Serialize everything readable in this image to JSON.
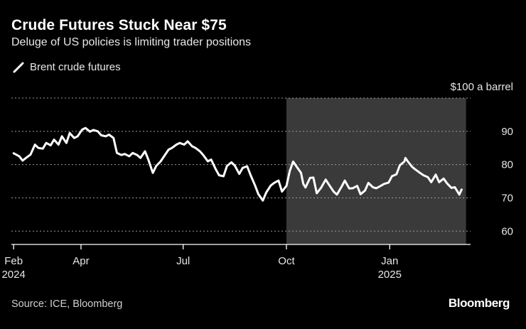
{
  "title": "Crude Futures Stuck Near $75",
  "subtitle": "Deluge of US policies is limiting trader positions",
  "source": "Source: ICE, Bloomberg",
  "brand": "Bloomberg",
  "colors": {
    "background": "#000000",
    "line": "#ffffff",
    "highlight": "#3a3a3a",
    "grid": "#9a9a9a"
  },
  "chart_data": {
    "type": "line",
    "series": [
      {
        "name": "Brent crude futures",
        "points": [
          [
            "2024-02-01",
            83.4
          ],
          [
            "2024-02-06",
            82.5
          ],
          [
            "2024-02-09",
            81.2
          ],
          [
            "2024-02-12",
            82.0
          ],
          [
            "2024-02-16",
            83.0
          ],
          [
            "2024-02-20",
            86.0
          ],
          [
            "2024-02-23",
            85.0
          ],
          [
            "2024-02-27",
            84.8
          ],
          [
            "2024-03-01",
            86.5
          ],
          [
            "2024-03-05",
            85.8
          ],
          [
            "2024-03-08",
            87.5
          ],
          [
            "2024-03-12",
            86.0
          ],
          [
            "2024-03-15",
            88.5
          ],
          [
            "2024-03-19",
            86.5
          ],
          [
            "2024-03-22",
            89.5
          ],
          [
            "2024-03-26",
            88.0
          ],
          [
            "2024-03-29",
            88.5
          ],
          [
            "2024-04-02",
            90.5
          ],
          [
            "2024-04-05",
            91.0
          ],
          [
            "2024-04-09",
            89.9
          ],
          [
            "2024-04-12",
            90.4
          ],
          [
            "2024-04-16",
            90.0
          ],
          [
            "2024-04-19",
            88.8
          ],
          [
            "2024-04-23",
            88.5
          ],
          [
            "2024-04-26",
            89.0
          ],
          [
            "2024-04-30",
            88.0
          ],
          [
            "2024-05-03",
            83.5
          ],
          [
            "2024-05-07",
            82.9
          ],
          [
            "2024-05-10",
            83.2
          ],
          [
            "2024-05-14",
            82.5
          ],
          [
            "2024-05-17",
            83.5
          ],
          [
            "2024-05-21",
            82.9
          ],
          [
            "2024-05-24",
            82.0
          ],
          [
            "2024-05-28",
            84.0
          ],
          [
            "2024-05-31",
            81.5
          ],
          [
            "2024-06-04",
            77.5
          ],
          [
            "2024-06-07",
            79.6
          ],
          [
            "2024-06-11",
            81.0
          ],
          [
            "2024-06-14",
            82.5
          ],
          [
            "2024-06-18",
            84.5
          ],
          [
            "2024-06-21",
            85.0
          ],
          [
            "2024-06-25",
            86.0
          ],
          [
            "2024-06-28",
            86.5
          ],
          [
            "2024-07-02",
            86.0
          ],
          [
            "2024-07-05",
            87.0
          ],
          [
            "2024-07-09",
            85.5
          ],
          [
            "2024-07-12",
            85.0
          ],
          [
            "2024-07-16",
            84.0
          ],
          [
            "2024-07-19",
            82.8
          ],
          [
            "2024-07-23",
            81.0
          ],
          [
            "2024-07-26",
            81.5
          ],
          [
            "2024-07-30",
            78.6
          ],
          [
            "2024-08-02",
            76.8
          ],
          [
            "2024-08-06",
            76.5
          ],
          [
            "2024-08-09",
            79.6
          ],
          [
            "2024-08-13",
            80.7
          ],
          [
            "2024-08-16",
            79.7
          ],
          [
            "2024-08-20",
            77.2
          ],
          [
            "2024-08-23",
            79.0
          ],
          [
            "2024-08-27",
            79.5
          ],
          [
            "2024-08-30",
            76.9
          ],
          [
            "2024-09-03",
            73.8
          ],
          [
            "2024-09-06",
            71.1
          ],
          [
            "2024-09-10",
            69.2
          ],
          [
            "2024-09-13",
            71.6
          ],
          [
            "2024-09-17",
            73.7
          ],
          [
            "2024-09-20",
            74.5
          ],
          [
            "2024-09-24",
            75.2
          ],
          [
            "2024-09-27",
            71.9
          ],
          [
            "2024-10-01",
            73.6
          ],
          [
            "2024-10-04",
            78.1
          ],
          [
            "2024-10-07",
            80.9
          ],
          [
            "2024-10-10",
            79.4
          ],
          [
            "2024-10-14",
            77.5
          ],
          [
            "2024-10-16",
            74.2
          ],
          [
            "2024-10-18",
            73.1
          ],
          [
            "2024-10-22",
            76.0
          ],
          [
            "2024-10-25",
            76.1
          ],
          [
            "2024-10-28",
            71.4
          ],
          [
            "2024-11-01",
            73.1
          ],
          [
            "2024-11-05",
            75.5
          ],
          [
            "2024-11-08",
            73.9
          ],
          [
            "2024-11-12",
            71.9
          ],
          [
            "2024-11-15",
            71.0
          ],
          [
            "2024-11-19",
            73.3
          ],
          [
            "2024-11-22",
            75.2
          ],
          [
            "2024-11-26",
            72.8
          ],
          [
            "2024-11-29",
            72.9
          ],
          [
            "2024-12-03",
            73.6
          ],
          [
            "2024-12-06",
            71.1
          ],
          [
            "2024-12-10",
            72.2
          ],
          [
            "2024-12-13",
            74.5
          ],
          [
            "2024-12-17",
            73.2
          ],
          [
            "2024-12-20",
            72.9
          ],
          [
            "2024-12-24",
            73.6
          ],
          [
            "2024-12-27",
            74.2
          ],
          [
            "2024-12-31",
            74.6
          ],
          [
            "2025-01-03",
            76.5
          ],
          [
            "2025-01-07",
            77.1
          ],
          [
            "2025-01-10",
            79.8
          ],
          [
            "2025-01-14",
            80.9
          ],
          [
            "2025-01-15",
            82.0
          ],
          [
            "2025-01-17",
            81.0
          ],
          [
            "2025-01-21",
            79.3
          ],
          [
            "2025-01-24",
            78.5
          ],
          [
            "2025-01-28",
            77.5
          ],
          [
            "2025-01-31",
            76.8
          ],
          [
            "2025-02-04",
            76.2
          ],
          [
            "2025-02-07",
            74.7
          ],
          [
            "2025-02-11",
            77.0
          ],
          [
            "2025-02-14",
            74.7
          ],
          [
            "2025-02-18",
            75.8
          ],
          [
            "2025-02-21",
            74.4
          ],
          [
            "2025-02-25",
            73.0
          ],
          [
            "2025-02-28",
            73.2
          ],
          [
            "2025-03-04",
            71.0
          ],
          [
            "2025-03-06",
            72.5
          ]
        ]
      }
    ],
    "ylabel": "$100 a barrel",
    "y_ticks": [
      {
        "value": 90,
        "label": "90"
      },
      {
        "value": 80,
        "label": "80"
      },
      {
        "value": 70,
        "label": "70"
      },
      {
        "value": 60,
        "label": "60"
      }
    ],
    "ylim": [
      56,
      100
    ],
    "xlim": [
      "2024-01-30",
      "2025-03-14"
    ],
    "x_ticks": [
      {
        "date": "2024-02-01",
        "label": "Feb",
        "sublabel": "2024"
      },
      {
        "date": "2024-04-01",
        "label": "Apr",
        "sublabel": ""
      },
      {
        "date": "2024-07-01",
        "label": "Jul",
        "sublabel": ""
      },
      {
        "date": "2024-10-01",
        "label": "Oct",
        "sublabel": ""
      },
      {
        "date": "2025-01-01",
        "label": "Jan",
        "sublabel": "2025"
      }
    ],
    "shaded_range": [
      "2024-10-01",
      "2025-03-10"
    ],
    "grid": true,
    "legend": "top-left"
  }
}
